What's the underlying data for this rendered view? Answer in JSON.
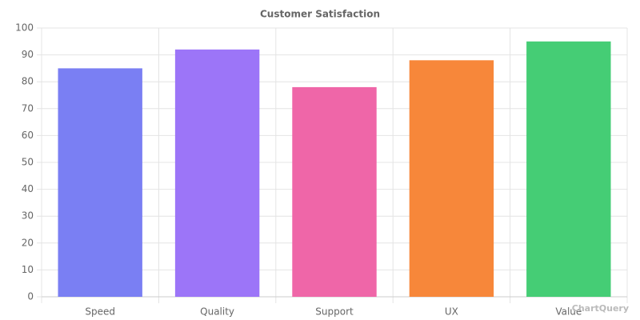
{
  "chart_data": {
    "type": "bar",
    "title": "Customer Satisfaction",
    "categories": [
      "Speed",
      "Quality",
      "Support",
      "UX",
      "Value"
    ],
    "values": [
      85,
      92,
      78,
      88,
      95
    ],
    "colors": [
      "#7a7ff3",
      "#9c75f8",
      "#ef66a8",
      "#f7873a",
      "#45cd75"
    ],
    "ylim": [
      0,
      100
    ],
    "yticks": [
      0,
      10,
      20,
      30,
      40,
      50,
      60,
      70,
      80,
      90,
      100
    ],
    "grid": true,
    "watermark": "ChartQuery"
  }
}
